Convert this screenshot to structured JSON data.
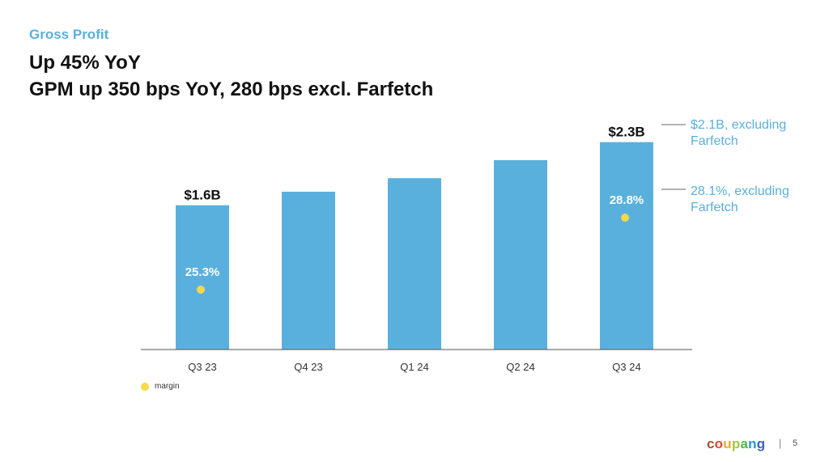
{
  "header": {
    "section_label": "Gross Profit",
    "headline_line1": "Up 45% YoY",
    "headline_line2": "GPM up 350 bps YoY, 280 bps excl. Farfetch"
  },
  "chart_data": {
    "type": "bar",
    "categories": [
      "Q3 23",
      "Q4 23",
      "Q1 24",
      "Q2 24",
      "Q3 24"
    ],
    "values": [
      1.6,
      1.75,
      1.9,
      2.1,
      2.3
    ],
    "value_labels": [
      "$1.6B",
      "",
      "",
      "",
      "$2.3B"
    ],
    "margin_series": [
      {
        "category": "Q3 23",
        "label": "25.3%",
        "value": 25.3
      },
      {
        "category": "Q3 24",
        "label": "28.8%",
        "value": 28.8
      }
    ],
    "legend": {
      "margin_label": "margin",
      "placement": "bottom-left"
    },
    "annotations": [
      {
        "category": "Q3 24",
        "target": "bar",
        "text_line1": "$2.1B, excluding",
        "text_line2": "Farfetch"
      },
      {
        "category": "Q3 24",
        "target": "margin",
        "text_line1": "28.1%, excluding",
        "text_line2": "Farfetch"
      }
    ],
    "ylim": [
      0,
      2.53
    ],
    "grid": false,
    "colors": {
      "bar": "#5ab0dc",
      "margin_dot": "#f8d949",
      "annotation": "#5aafdc",
      "axis": "#555555"
    }
  },
  "footer": {
    "logo_letters": [
      {
        "char": "c",
        "color": "#a0522d"
      },
      {
        "char": "o",
        "color": "#e8412c"
      },
      {
        "char": "u",
        "color": "#f2a33a"
      },
      {
        "char": "p",
        "color": "#a6c83a"
      },
      {
        "char": "a",
        "color": "#4cb848"
      },
      {
        "char": "n",
        "color": "#1f9bd7"
      },
      {
        "char": "g",
        "color": "#3c64b1"
      }
    ],
    "separator": "|",
    "page_number": "5"
  }
}
